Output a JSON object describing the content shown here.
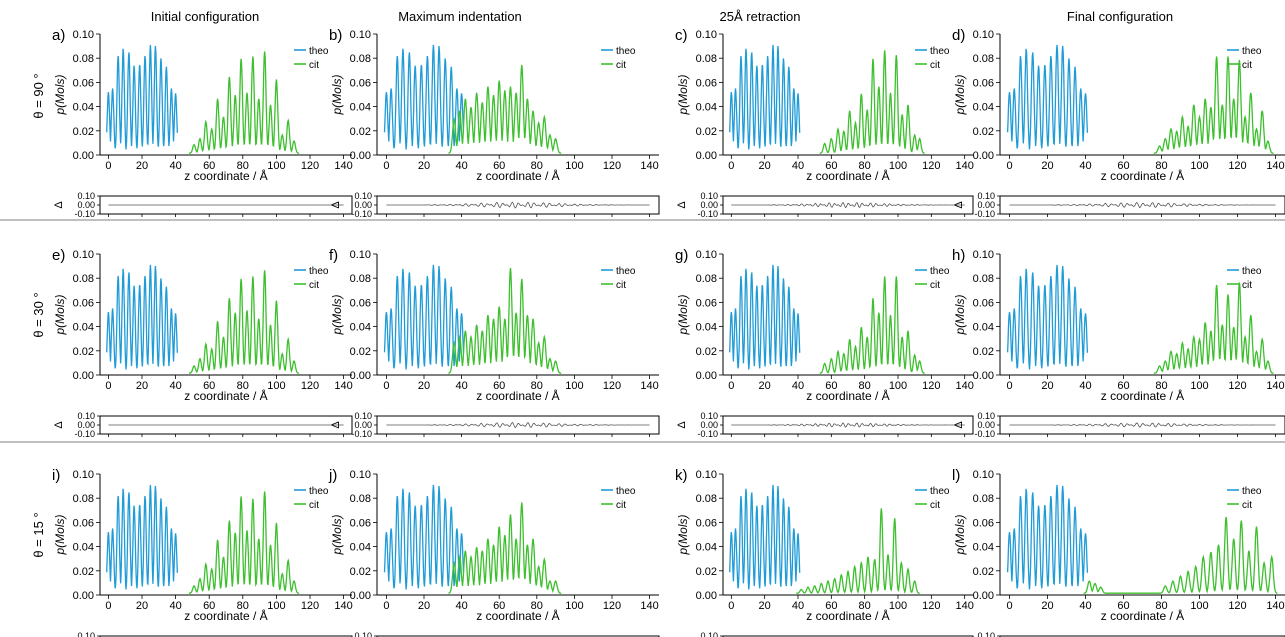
{
  "figure": {
    "columns": [
      "Initial configuration",
      "Maximum indentation",
      "25Å retraction",
      "Final configuration"
    ],
    "rows": [
      "θ = 90 °",
      "θ = 30 °",
      "θ = 15 °"
    ],
    "panel_letters": [
      "a)",
      "b)",
      "c)",
      "d)",
      "e)",
      "f)",
      "g)",
      "h)",
      "i)",
      "j)",
      "k)",
      "l)"
    ],
    "xlabel": "z coordinate / Å",
    "ylabel": "p(Mols)",
    "diff_label": "Δ",
    "colors": {
      "theo": "#1f9bd7",
      "cit": "#3dbf2e",
      "diff": "#555555",
      "axis": "#000000"
    }
  },
  "chart_data": {
    "type": "line",
    "description_scope": "12 panels: 3 rows (theta) x 4 columns (state); each panel has main density profile plus residual subplot",
    "xlim": [
      -5,
      145
    ],
    "ylim": [
      0,
      0.1
    ],
    "xticks": [
      0,
      20,
      40,
      60,
      80,
      100,
      120,
      140
    ],
    "yticks": [
      0.0,
      0.02,
      0.04,
      0.06,
      0.08,
      0.1
    ],
    "yticklabels": [
      "0.00",
      "0.02",
      "0.04",
      "0.06",
      "0.08",
      "0.10"
    ],
    "diff_ylim": [
      -0.1,
      0.1
    ],
    "diff_yticks": [
      -0.1,
      0.0,
      0.1
    ],
    "diff_yticklabels": [
      "-0.10",
      "0.00",
      "0.10"
    ],
    "legend": [
      "theo",
      "cit"
    ],
    "legend_position": "top-right",
    "theo_peaks": {
      "x": [
        0,
        2.5,
        5.8,
        8.8,
        12.2,
        15.3,
        18.6,
        21.8,
        25.0,
        28.0,
        31.3,
        34.5,
        37.5,
        40.0
      ],
      "y": [
        0.052,
        0.055,
        0.082,
        0.088,
        0.085,
        0.074,
        0.075,
        0.082,
        0.091,
        0.09,
        0.08,
        0.073,
        0.055,
        0.051
      ]
    },
    "panels": [
      {
        "letter": "a)",
        "row": 0,
        "col": 0,
        "cit_peaks": {
          "x": [
            51,
            54.5,
            58,
            61.5,
            65,
            68.5,
            72,
            75.5,
            79,
            82.5,
            86,
            89.5,
            93,
            96.5,
            100,
            103.5,
            107,
            110.5
          ],
          "y": [
            0.007,
            0.012,
            0.026,
            0.02,
            0.045,
            0.03,
            0.063,
            0.048,
            0.078,
            0.05,
            0.08,
            0.045,
            0.084,
            0.04,
            0.061,
            0.015,
            0.027,
            0.01
          ]
        },
        "diff_amp": 0.0
      },
      {
        "letter": "b)",
        "row": 0,
        "col": 1,
        "cit_peaks": {
          "x": [
            36,
            39,
            42,
            45,
            48,
            51,
            54,
            57,
            60,
            63,
            66,
            69,
            72,
            75,
            78,
            81,
            84,
            87,
            90
          ],
          "y": [
            0.028,
            0.035,
            0.045,
            0.038,
            0.05,
            0.042,
            0.055,
            0.048,
            0.06,
            0.052,
            0.055,
            0.05,
            0.073,
            0.045,
            0.035,
            0.025,
            0.03,
            0.015,
            0.012
          ]
        },
        "diff_amp": 0.035
      },
      {
        "letter": "c)",
        "row": 0,
        "col": 2,
        "cit_peaks": {
          "x": [
            56,
            60,
            64,
            67.5,
            71,
            74.5,
            78,
            81.5,
            85,
            88.5,
            92,
            95.5,
            99,
            102.5,
            106,
            110,
            113
          ],
          "y": [
            0.008,
            0.012,
            0.02,
            0.018,
            0.035,
            0.025,
            0.049,
            0.036,
            0.078,
            0.055,
            0.085,
            0.05,
            0.081,
            0.032,
            0.04,
            0.015,
            0.012
          ]
        },
        "diff_amp": 0.03
      },
      {
        "letter": "d)",
        "row": 0,
        "col": 3,
        "cit_peaks": {
          "x": [
            79,
            82,
            85,
            88,
            91,
            94,
            97,
            100,
            103,
            106,
            109,
            112,
            115,
            118,
            121,
            124,
            127,
            130,
            133,
            136
          ],
          "y": [
            0.006,
            0.012,
            0.02,
            0.018,
            0.03,
            0.022,
            0.04,
            0.03,
            0.045,
            0.038,
            0.08,
            0.04,
            0.08,
            0.045,
            0.077,
            0.03,
            0.05,
            0.02,
            0.035,
            0.01
          ]
        },
        "diff_amp": 0.03
      },
      {
        "letter": "e)",
        "row": 1,
        "col": 0,
        "cit_peaks": {
          "x": [
            51,
            54.5,
            58,
            61.5,
            65,
            68.5,
            72,
            75.5,
            79,
            82.5,
            86,
            89.5,
            93,
            96.5,
            100,
            103.5,
            107,
            110.5
          ],
          "y": [
            0.006,
            0.012,
            0.024,
            0.02,
            0.043,
            0.03,
            0.062,
            0.05,
            0.078,
            0.052,
            0.08,
            0.045,
            0.085,
            0.04,
            0.06,
            0.016,
            0.028,
            0.01
          ]
        },
        "diff_amp": 0.0
      },
      {
        "letter": "f)",
        "row": 1,
        "col": 1,
        "cit_peaks": {
          "x": [
            36,
            39,
            42,
            45,
            48,
            51,
            54,
            57,
            60,
            63,
            66,
            69,
            72,
            75,
            78,
            81,
            84,
            87,
            90
          ],
          "y": [
            0.025,
            0.03,
            0.035,
            0.03,
            0.04,
            0.035,
            0.048,
            0.045,
            0.055,
            0.045,
            0.087,
            0.05,
            0.078,
            0.048,
            0.045,
            0.025,
            0.03,
            0.012,
            0.01
          ]
        },
        "diff_amp": 0.03
      },
      {
        "letter": "g)",
        "row": 1,
        "col": 2,
        "cit_peaks": {
          "x": [
            56,
            60,
            64,
            67.5,
            71,
            74.5,
            78,
            81.5,
            85,
            88.5,
            92,
            95.5,
            99,
            102.5,
            106,
            110,
            113
          ],
          "y": [
            0.008,
            0.012,
            0.018,
            0.016,
            0.028,
            0.022,
            0.038,
            0.03,
            0.062,
            0.05,
            0.08,
            0.048,
            0.08,
            0.03,
            0.035,
            0.015,
            0.01
          ]
        },
        "diff_amp": 0.025
      },
      {
        "letter": "h)",
        "row": 1,
        "col": 3,
        "cit_peaks": {
          "x": [
            79,
            82,
            85,
            88,
            91,
            94,
            97,
            100,
            103,
            106,
            109,
            112,
            115,
            118,
            121,
            124,
            127,
            130,
            133,
            136
          ],
          "y": [
            0.006,
            0.01,
            0.018,
            0.016,
            0.025,
            0.02,
            0.03,
            0.028,
            0.042,
            0.035,
            0.073,
            0.04,
            0.065,
            0.038,
            0.075,
            0.03,
            0.048,
            0.018,
            0.028,
            0.01
          ]
        },
        "diff_amp": 0.025
      },
      {
        "letter": "i)",
        "row": 2,
        "col": 0,
        "cit_peaks": {
          "x": [
            51,
            54.5,
            58,
            61.5,
            65,
            68.5,
            72,
            75.5,
            79,
            82.5,
            86,
            89.5,
            93,
            96.5,
            100,
            103.5,
            107,
            110.5
          ],
          "y": [
            0.006,
            0.012,
            0.024,
            0.02,
            0.044,
            0.03,
            0.06,
            0.05,
            0.08,
            0.052,
            0.078,
            0.045,
            0.084,
            0.04,
            0.058,
            0.016,
            0.027,
            0.01
          ]
        },
        "diff_amp": 0.0
      },
      {
        "letter": "j)",
        "row": 2,
        "col": 1,
        "cit_peaks": {
          "x": [
            36,
            39,
            42,
            45,
            48,
            51,
            54,
            57,
            60,
            63,
            66,
            69,
            72,
            75,
            78,
            81,
            84,
            87,
            90
          ],
          "y": [
            0.025,
            0.03,
            0.035,
            0.03,
            0.038,
            0.035,
            0.045,
            0.04,
            0.055,
            0.048,
            0.065,
            0.045,
            0.075,
            0.04,
            0.045,
            0.022,
            0.028,
            0.01,
            0.01
          ]
        },
        "diff_amp": 0.035
      },
      {
        "letter": "k)",
        "row": 2,
        "col": 2,
        "cit_peaks": {
          "x": [
            42,
            46,
            50,
            54,
            58,
            62,
            66,
            70,
            74,
            78,
            82,
            86,
            90,
            94,
            98,
            102,
            106,
            110
          ],
          "y": [
            0.003,
            0.005,
            0.006,
            0.008,
            0.01,
            0.012,
            0.015,
            0.018,
            0.022,
            0.025,
            0.03,
            0.028,
            0.07,
            0.032,
            0.062,
            0.025,
            0.02,
            0.01
          ]
        },
        "diff_amp": 0.025
      },
      {
        "letter": "l)",
        "row": 2,
        "col": 3,
        "cit_peaks": {
          "x": [
            42,
            45,
            48,
            82,
            86,
            90,
            94,
            98,
            102,
            106,
            110,
            114,
            118,
            122,
            126,
            130,
            134,
            138
          ],
          "y": [
            0.01,
            0.008,
            0.005,
            0.006,
            0.01,
            0.014,
            0.018,
            0.022,
            0.03,
            0.034,
            0.04,
            0.063,
            0.045,
            0.06,
            0.035,
            0.055,
            0.025,
            0.03
          ]
        },
        "diff_amp": 0.025
      }
    ]
  }
}
